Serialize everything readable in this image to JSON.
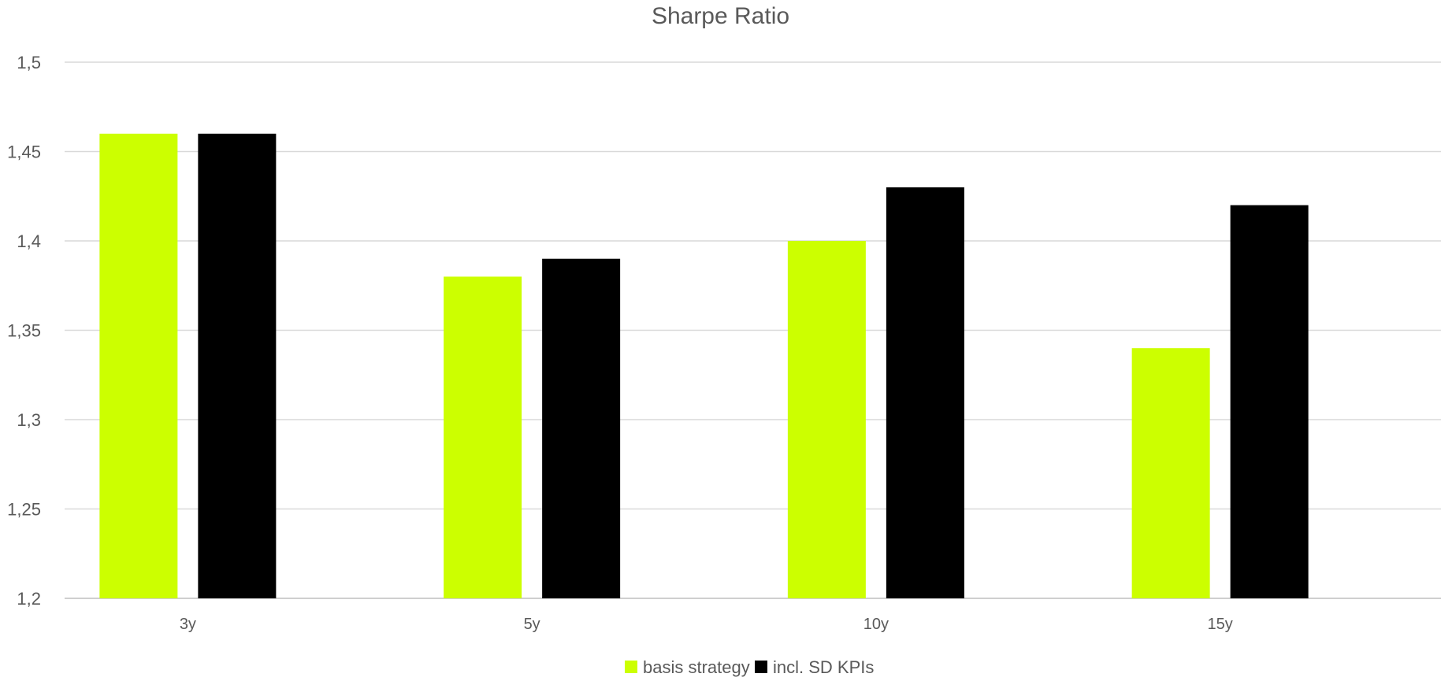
{
  "chart_data": {
    "type": "bar",
    "title": "Sharpe Ratio",
    "categories": [
      "3y",
      "5y",
      "10y",
      "15y"
    ],
    "series": [
      {
        "name": "basis strategy",
        "color": "#CCFF00",
        "values": [
          1.46,
          1.38,
          1.4,
          1.34
        ]
      },
      {
        "name": "incl. SD KPIs",
        "color": "#000000",
        "values": [
          1.46,
          1.39,
          1.43,
          1.42
        ]
      }
    ],
    "ylim": [
      1.2,
      1.5
    ],
    "yticks": [
      1.2,
      1.25,
      1.3,
      1.35,
      1.4,
      1.45,
      1.5
    ],
    "ytick_labels": [
      "1,2",
      "1,25",
      "1,3",
      "1,35",
      "1,4",
      "1,45",
      "1,5"
    ],
    "xlabel": "",
    "ylabel": "",
    "grid": true,
    "legend_position": "bottom"
  }
}
